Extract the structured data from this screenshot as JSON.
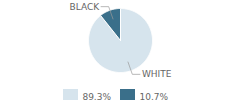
{
  "chart_data": {
    "type": "pie",
    "categories": [
      "WHITE",
      "BLACK"
    ],
    "values": [
      89.3,
      10.7
    ],
    "value_labels": [
      "89.3%",
      "10.7%"
    ],
    "colors": [
      "#d6e4ed",
      "#3a6f8a"
    ],
    "legend": "bottom"
  }
}
